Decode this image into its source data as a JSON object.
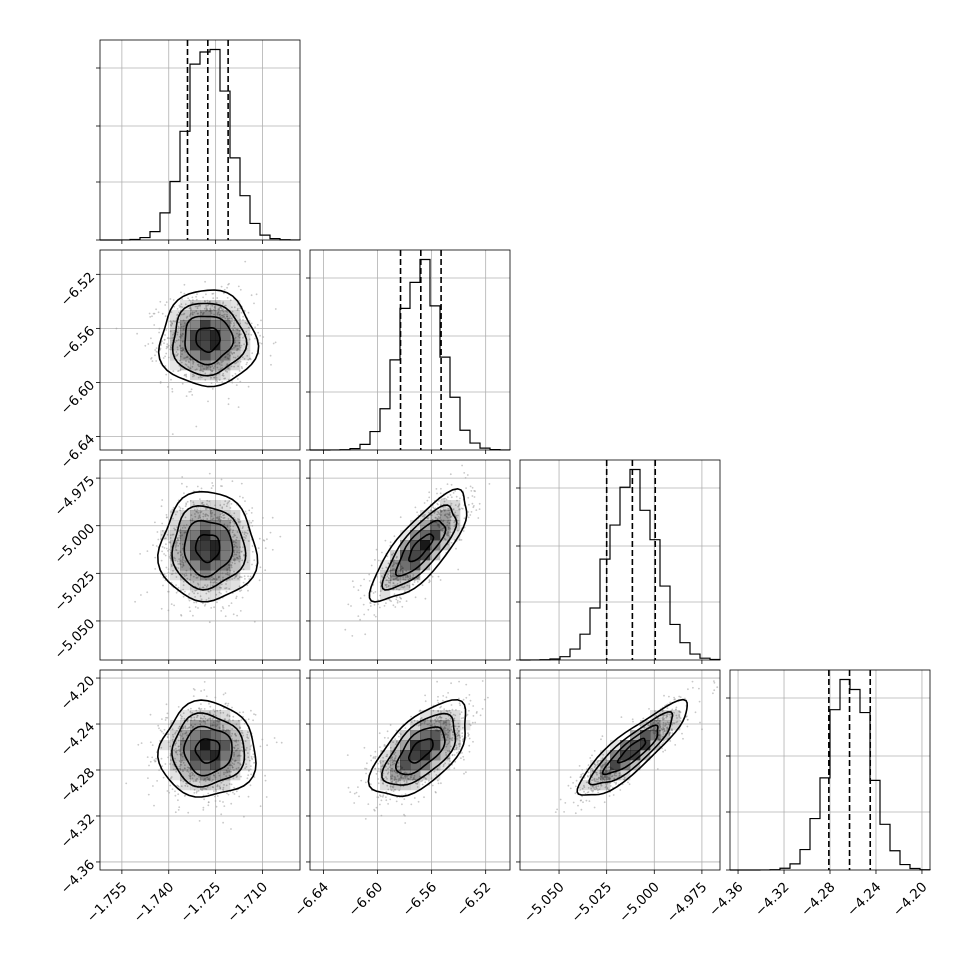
{
  "chart_data": {
    "type": "corner",
    "description_visible": "corner plot of 4 parameters: 1D histograms on diagonal, 2D density contours off-diagonal",
    "colors": {
      "ink": "#000000",
      "grid": "#b0b0b0",
      "scatter": "#9a9a9a",
      "density": "#000000"
    },
    "grid": true,
    "parameters": [
      {
        "index": 0,
        "range": [
          -1.762,
          -1.698
        ],
        "ticks": [
          -1.755,
          -1.74,
          -1.725,
          -1.71
        ],
        "tick_labels": [
          "−1.755",
          "−1.740",
          "−1.725",
          "−1.710"
        ],
        "median": -1.7275,
        "q16": -1.734,
        "q84": -1.721,
        "sigma": 0.0067
      },
      {
        "index": 1,
        "range": [
          -6.65,
          -6.502
        ],
        "ticks": [
          -6.64,
          -6.6,
          -6.56,
          -6.52
        ],
        "tick_labels": [
          "−6.64",
          "−6.60",
          "−6.56",
          "−6.52"
        ],
        "median": -6.568,
        "q16": -6.583,
        "q84": -6.553,
        "sigma": 0.0155
      },
      {
        "index": 2,
        "range": [
          -5.0705,
          -4.9655
        ],
        "ticks": [
          -5.05,
          -5.025,
          -5.0,
          -4.975
        ],
        "tick_labels": [
          "−5.050",
          "−5.025",
          "−5.000",
          "−4.975"
        ],
        "median": -5.0115,
        "q16": -5.025,
        "q84": -4.9995,
        "sigma": 0.0125
      },
      {
        "index": 3,
        "range": [
          -4.367,
          -4.193
        ],
        "ticks": [
          -4.36,
          -4.32,
          -4.28,
          -4.24,
          -4.2
        ],
        "tick_labels": [
          "−4.36",
          "−4.32",
          "−4.28",
          "−4.24",
          "−4.20"
        ],
        "median": -4.263,
        "q16": -4.281,
        "q84": -4.245,
        "sigma": 0.018
      }
    ],
    "correlations": [
      {
        "x": 0,
        "y": 1,
        "rho": 0.0
      },
      {
        "x": 0,
        "y": 2,
        "rho": 0.0
      },
      {
        "x": 1,
        "y": 2,
        "rho": 0.78
      },
      {
        "x": 0,
        "y": 3,
        "rho": 0.0
      },
      {
        "x": 1,
        "y": 3,
        "rho": 0.6
      },
      {
        "x": 2,
        "y": 3,
        "rho": 0.87
      }
    ],
    "histogram_bins": 20,
    "contour_levels_sigma": [
      0.5,
      1.0,
      1.5,
      2.0
    ]
  }
}
